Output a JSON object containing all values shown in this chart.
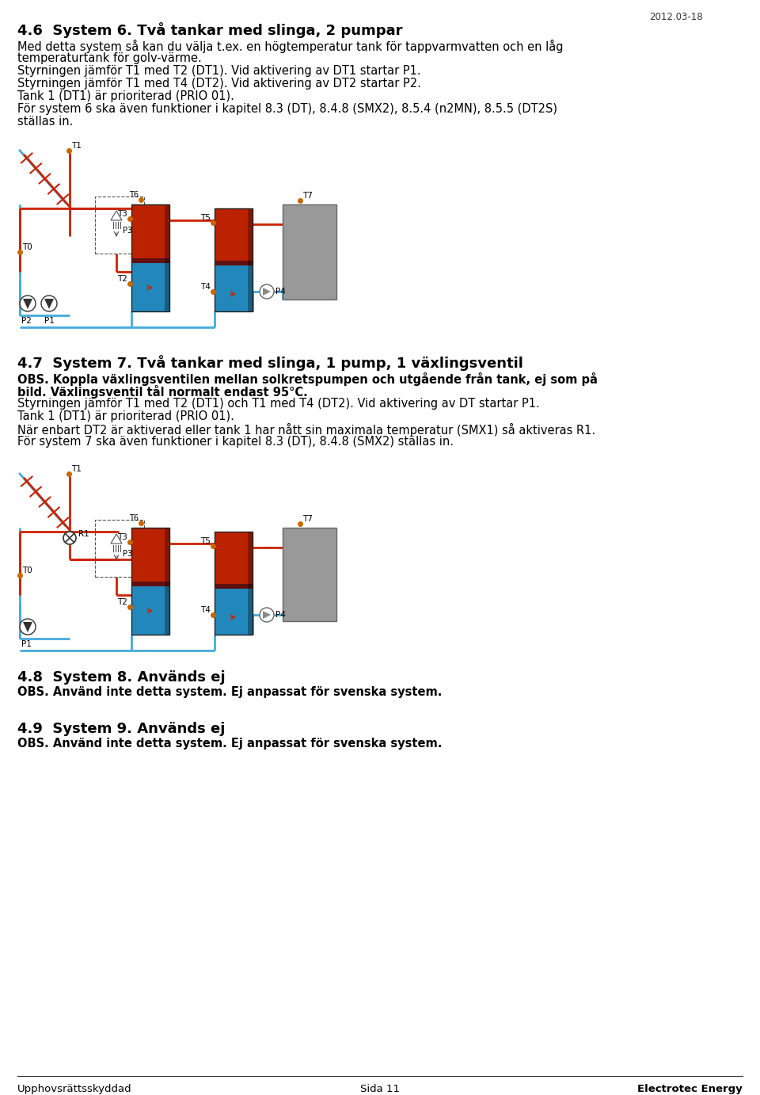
{
  "bg_color": "#ffffff",
  "date_text": "2012.03-18",
  "section46_title": "4.6  System 6. Två tankar med slinga, 2 pumpar",
  "section46_body": [
    "Med detta system så kan du välja t.ex. en högtemperatur tank för tappvarmvatten och en låg",
    "temperaturtank för golv-värme.",
    "Styrningen jämför T1 med T2 (DT1). Vid aktivering av DT1 startar P1.",
    "Styrningen jämför T1 med T4 (DT2). Vid aktivering av DT2 startar P2.",
    "Tank 1 (DT1) är prioriterad (PRIO 01).",
    "För system 6 ska även funktioner i kapitel 8.3 (DT), 8.4.8 (SMX2), 8.5.4 (n2MN), 8.5.5 (DT2S)",
    "ställas in."
  ],
  "section47_title": "4.7  System 7. Två tankar med slinga, 1 pump, 1 växlingsventil",
  "section47_obs_lines": [
    "OBS. Koppla växlingsventilen mellan solkretspumpen och utgående från tank, ej som på",
    "bild. Växlingsventil tål normalt endast 95°C."
  ],
  "section47_body": [
    "Styrningen jämför T1 med T2 (DT1) och T1 med T4 (DT2). Vid aktivering av DT startar P1.",
    "Tank 1 (DT1) är prioriterad (PRIO 01).",
    "När enbart DT2 är aktiverad eller tank 1 har nått sin maximala temperatur (SMX1) så aktiveras R1.",
    "För system 7 ska även funktioner i kapitel 8.3 (DT), 8.4.8 (SMX2) ställas in."
  ],
  "section48_title": "4.8  System 8. Används ej",
  "section48_obs": "OBS. Använd inte detta system. Ej anpassat för svenska system.",
  "section49_title": "4.9  System 9. Används ej",
  "section49_obs": "OBS. Använd inte detta system. Ej anpassat för svenska system.",
  "footer_left": "Upphovsrättsskyddad",
  "footer_center": "Sida 11",
  "footer_right": "Electrotec Energy",
  "text_color": "#000000",
  "pipe_red": "#cc2200",
  "pipe_blue": "#44aadd",
  "sensor_dot": "#cc6600",
  "tank_red": "#bb2200",
  "tank_blue": "#2288bb",
  "tank_dark": "#1a1a40",
  "gray_box": "#999999",
  "gray_box_edge": "#666666"
}
